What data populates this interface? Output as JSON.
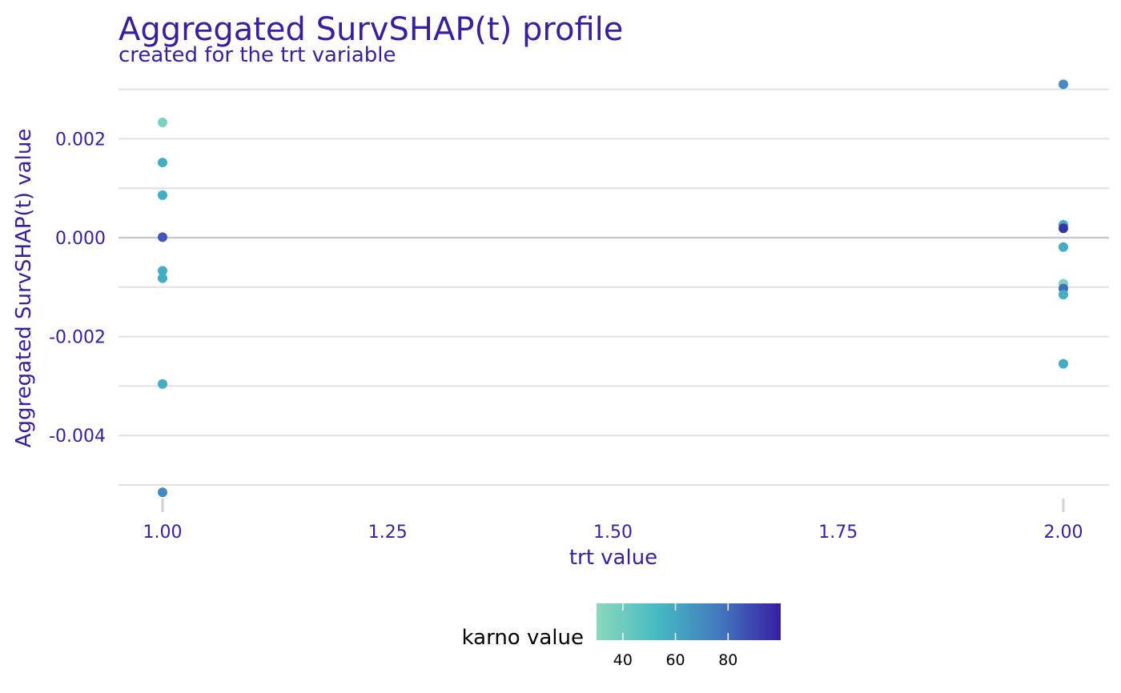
{
  "chart_data": {
    "type": "scatter",
    "title": "Aggregated SurvSHAP(t) profile",
    "subtitle": "created for the trt variable",
    "xlabel": "trt value",
    "ylabel": "Aggregated SurvSHAP(t) value",
    "xlim": [
      0.9,
      2.05
    ],
    "ylim": [
      -0.0052,
      0.0031
    ],
    "x_ticks": [
      1.0,
      1.25,
      1.5,
      1.75,
      2.0
    ],
    "x_tick_labels": [
      "1.00",
      "1.25",
      "1.50",
      "1.75",
      "2.00"
    ],
    "y_ticks": [
      -0.004,
      -0.002,
      0.0,
      0.002
    ],
    "y_tick_labels": [
      "-0.004",
      "-0.002",
      "0.000",
      "0.002"
    ],
    "grid": true,
    "zero_line": true,
    "points": [
      {
        "x": 1.0,
        "y": 0.00233,
        "karno": 35
      },
      {
        "x": 1.0,
        "y": 0.00152,
        "karno": 58
      },
      {
        "x": 1.0,
        "y": 0.00086,
        "karno": 58
      },
      {
        "x": 1.0,
        "y": 1e-05,
        "karno": 85
      },
      {
        "x": 1.0,
        "y": -0.00067,
        "karno": 58
      },
      {
        "x": 1.0,
        "y": -0.00082,
        "karno": 58
      },
      {
        "x": 1.0,
        "y": -0.00296,
        "karno": 58
      },
      {
        "x": 1.0,
        "y": -0.00515,
        "karno": 70
      },
      {
        "x": 2.0,
        "y": 0.0031,
        "karno": 70
      },
      {
        "x": 2.0,
        "y": 0.00026,
        "karno": 58
      },
      {
        "x": 2.0,
        "y": 0.00019,
        "karno": 95
      },
      {
        "x": 2.0,
        "y": -0.00019,
        "karno": 58
      },
      {
        "x": 2.0,
        "y": -0.00093,
        "karno": 35
      },
      {
        "x": 2.0,
        "y": -0.00103,
        "karno": 80
      },
      {
        "x": 2.0,
        "y": -0.00115,
        "karno": 58
      },
      {
        "x": 2.0,
        "y": -0.00255,
        "karno": 58
      }
    ],
    "color_scale": {
      "title": "karno value",
      "domain": [
        30,
        100
      ],
      "stops": [
        "#8bd8bd",
        "#46bac2",
        "#4378bf",
        "#371ea3"
      ],
      "ticks": [
        40,
        60,
        80
      ],
      "tick_labels": [
        "40",
        "60",
        "80"
      ]
    },
    "legend_position": "bottom",
    "colors": {
      "text": "#371ea3",
      "grid": "#e0e0e0",
      "zero_line": "#c8c8d0",
      "axis_ticks": "#d0d0d8"
    }
  }
}
